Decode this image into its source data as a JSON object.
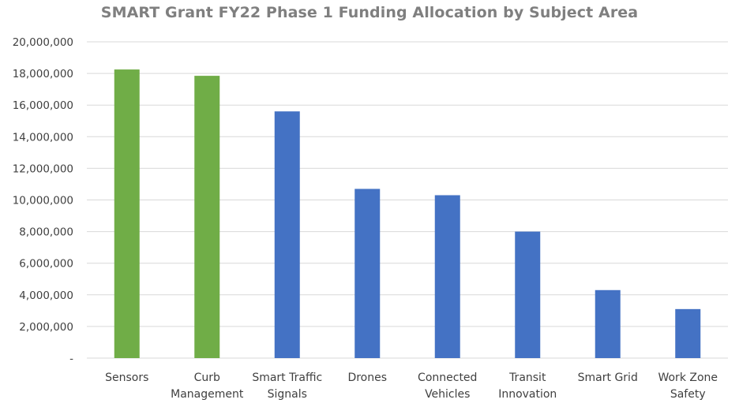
{
  "chart_data": {
    "type": "bar",
    "title": "SMART Grant FY22 Phase 1 Funding Allocation by Subject Area",
    "xlabel": "",
    "ylabel": "",
    "ylim": [
      0,
      20000000
    ],
    "yticks": [
      0,
      2000000,
      4000000,
      6000000,
      8000000,
      10000000,
      12000000,
      14000000,
      16000000,
      18000000,
      20000000
    ],
    "ytick_labels": [
      "-",
      "2,000,000",
      "4,000,000",
      "6,000,000",
      "8,000,000",
      "10,000,000",
      "12,000,000",
      "14,000,000",
      "16,000,000",
      "18,000,000",
      "20,000,000"
    ],
    "grid": true,
    "categories": [
      [
        "Sensors"
      ],
      [
        "Curb",
        "Management"
      ],
      [
        "Smart Traffic",
        "Signals"
      ],
      [
        "Drones"
      ],
      [
        "Connected",
        "Vehicles"
      ],
      [
        "Transit",
        "Innovation"
      ],
      [
        "Smart Grid"
      ],
      [
        "Work Zone",
        "Safety"
      ]
    ],
    "values": [
      18250000,
      17850000,
      15600000,
      10700000,
      10300000,
      8000000,
      4300000,
      3100000
    ],
    "colors": [
      "#70ad47",
      "#70ad47",
      "#4472c4",
      "#4472c4",
      "#4472c4",
      "#4472c4",
      "#4472c4",
      "#4472c4"
    ],
    "gridline_color": "#d9d9d9"
  }
}
